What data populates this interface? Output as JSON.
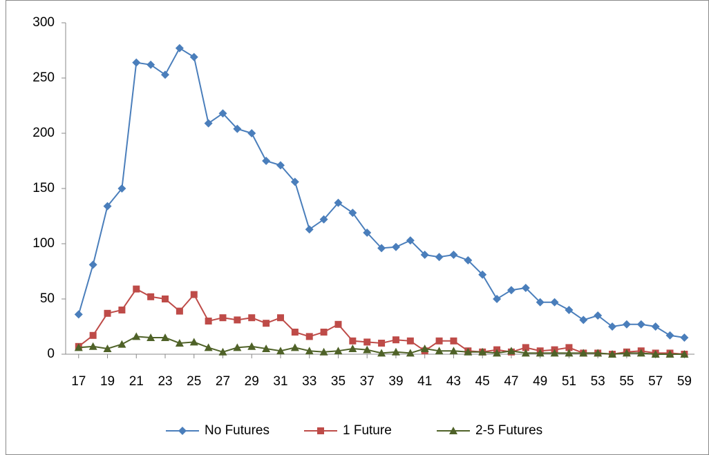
{
  "chart_data": {
    "type": "line",
    "x": [
      17,
      18,
      19,
      20,
      21,
      22,
      23,
      24,
      25,
      26,
      27,
      28,
      29,
      30,
      31,
      32,
      33,
      34,
      35,
      36,
      37,
      38,
      39,
      40,
      41,
      42,
      43,
      44,
      45,
      46,
      47,
      48,
      49,
      50,
      51,
      52,
      53,
      54,
      55,
      56,
      57,
      58,
      59
    ],
    "xlim": [
      16.1,
      59.7
    ],
    "xticks": [
      17,
      19,
      21,
      23,
      25,
      27,
      29,
      31,
      33,
      35,
      37,
      39,
      41,
      43,
      45,
      47,
      49,
      51,
      53,
      55,
      57,
      59
    ],
    "ylim": [
      0,
      300
    ],
    "yticks": [
      0,
      50,
      100,
      150,
      200,
      250,
      300
    ],
    "legend": "bottom",
    "series": [
      {
        "name": "No Futures",
        "color": "#4a7ebb",
        "marker": "diamond",
        "values": [
          36,
          81,
          134,
          150,
          264,
          262,
          253,
          277,
          269,
          209,
          218,
          204,
          200,
          175,
          171,
          156,
          113,
          122,
          137,
          128,
          110,
          96,
          97,
          103,
          90,
          88,
          90,
          85,
          72,
          50,
          58,
          60,
          47,
          47,
          40,
          31,
          35,
          25,
          27,
          27,
          25,
          17,
          15
        ]
      },
      {
        "name": "1 Future",
        "color": "#be4b48",
        "marker": "square",
        "values": [
          7,
          17,
          37,
          40,
          59,
          52,
          50,
          39,
          54,
          30,
          33,
          31,
          33,
          28,
          33,
          20,
          16,
          20,
          27,
          12,
          11,
          10,
          13,
          12,
          3,
          12,
          12,
          3,
          2,
          4,
          2,
          6,
          3,
          4,
          6,
          1,
          1,
          0,
          2,
          3,
          1,
          1,
          0
        ]
      },
      {
        "name": "2-5 Futures",
        "color": "#4f6228",
        "marker": "triangle",
        "values": [
          6,
          7,
          5,
          9,
          16,
          15,
          15,
          10,
          11,
          6,
          2,
          6,
          7,
          5,
          3,
          6,
          3,
          2,
          3,
          5,
          4,
          1,
          2,
          1,
          5,
          3,
          3,
          2,
          2,
          1,
          3,
          1,
          1,
          1,
          1,
          1,
          1,
          0,
          1,
          1,
          0,
          0,
          0
        ]
      }
    ]
  }
}
